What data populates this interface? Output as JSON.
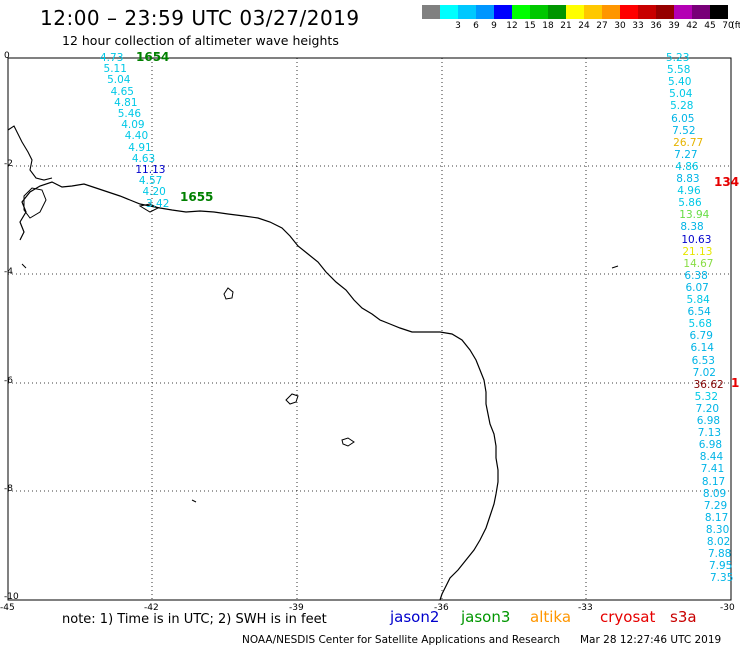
{
  "header": {
    "title": "12:00 – 23:59 UTC 03/27/2019",
    "subtitle": "12 hour collection of altimeter wave heights"
  },
  "legend": {
    "unit_label": "(ft)",
    "bins": [
      {
        "label": "",
        "color": "#808080"
      },
      {
        "label": "3",
        "color": "#00ffff"
      },
      {
        "label": "6",
        "color": "#00c8ff"
      },
      {
        "label": "9",
        "color": "#0096ff"
      },
      {
        "label": "12",
        "color": "#0000ff"
      },
      {
        "label": "15",
        "color": "#00ff00"
      },
      {
        "label": "18",
        "color": "#00c800"
      },
      {
        "label": "21",
        "color": "#009600"
      },
      {
        "label": "24",
        "color": "#ffff00"
      },
      {
        "label": "27",
        "color": "#ffc800"
      },
      {
        "label": "30",
        "color": "#ff9600"
      },
      {
        "label": "33",
        "color": "#ff0000"
      },
      {
        "label": "36",
        "color": "#c80000"
      },
      {
        "label": "39",
        "color": "#960000"
      },
      {
        "label": "42",
        "color": "#b400b4"
      },
      {
        "label": "45",
        "color": "#780078"
      },
      {
        "label": "70",
        "color": "#000000"
      }
    ]
  },
  "axes": {
    "x_ticks": [
      "-45",
      "-42",
      "-39",
      "-36",
      "-33",
      "-30"
    ],
    "y_ticks": [
      "0",
      "-2",
      "-4",
      "-6",
      "-8",
      "-10"
    ]
  },
  "tracks": {
    "west": {
      "start_time": "1654",
      "end_time": "1655",
      "values": [
        {
          "v": "4.73",
          "c": "#00c8e6"
        },
        {
          "v": "5.11",
          "c": "#00c8e6"
        },
        {
          "v": "5.04",
          "c": "#00c8e6"
        },
        {
          "v": "4.65",
          "c": "#00c8e6"
        },
        {
          "v": "4.81",
          "c": "#00c8e6"
        },
        {
          "v": "5.46",
          "c": "#00c8e6"
        },
        {
          "v": "4.09",
          "c": "#00c8e6"
        },
        {
          "v": "4.40",
          "c": "#00c8e6"
        },
        {
          "v": "4.91",
          "c": "#00c8e6"
        },
        {
          "v": "4.63",
          "c": "#00c8e6"
        },
        {
          "v": "11.13",
          "c": "#0000cc"
        },
        {
          "v": "4.57",
          "c": "#00c8e6"
        },
        {
          "v": "4.20",
          "c": "#00c8e6"
        },
        {
          "v": "3.42",
          "c": "#00c8e6"
        }
      ]
    },
    "east": {
      "values": [
        {
          "v": "5.23",
          "c": "#00c8e6"
        },
        {
          "v": "5.58",
          "c": "#00c8e6"
        },
        {
          "v": "5.40",
          "c": "#00c8e6"
        },
        {
          "v": "5.04",
          "c": "#00c8e6"
        },
        {
          "v": "5.28",
          "c": "#00c8e6"
        },
        {
          "v": "6.05",
          "c": "#00b4e6"
        },
        {
          "v": "7.52",
          "c": "#00b4e6"
        },
        {
          "v": "26.77",
          "c": "#e6b400"
        },
        {
          "v": "7.27",
          "c": "#00b4e6"
        },
        {
          "v": "4.86",
          "c": "#00c8e6"
        },
        {
          "v": "8.83",
          "c": "#00b4e6"
        },
        {
          "v": "4.96",
          "c": "#00c8e6"
        },
        {
          "v": "5.86",
          "c": "#00c8e6"
        },
        {
          "v": "13.94",
          "c": "#66dd44"
        },
        {
          "v": "8.38",
          "c": "#00b4e6"
        },
        {
          "v": "10.63",
          "c": "#0000cc"
        },
        {
          "v": "21.13",
          "c": "#e6e600"
        },
        {
          "v": "14.67",
          "c": "#88dd44"
        },
        {
          "v": "6.38",
          "c": "#00b4e6"
        },
        {
          "v": "6.07",
          "c": "#00b4e6"
        },
        {
          "v": "5.84",
          "c": "#00c8e6"
        },
        {
          "v": "6.54",
          "c": "#00b4e6"
        },
        {
          "v": "5.68",
          "c": "#00c8e6"
        },
        {
          "v": "6.79",
          "c": "#00b4e6"
        },
        {
          "v": "6.14",
          "c": "#00b4e6"
        },
        {
          "v": "6.53",
          "c": "#00b4e6"
        },
        {
          "v": "7.02",
          "c": "#00b4e6"
        },
        {
          "v": "36.62",
          "c": "#800000"
        },
        {
          "v": "5.32",
          "c": "#00c8e6"
        },
        {
          "v": "7.20",
          "c": "#00b4e6"
        },
        {
          "v": "6.98",
          "c": "#00b4e6"
        },
        {
          "v": "7.13",
          "c": "#00b4e6"
        },
        {
          "v": "6.98",
          "c": "#00b4e6"
        },
        {
          "v": "8.44",
          "c": "#00b4e6"
        },
        {
          "v": "7.41",
          "c": "#00b4e6"
        },
        {
          "v": "8.17",
          "c": "#00b4e6"
        },
        {
          "v": "8.09",
          "c": "#00b4e6"
        },
        {
          "v": "7.29",
          "c": "#00b4e6"
        },
        {
          "v": "8.17",
          "c": "#00b4e6"
        },
        {
          "v": "8.30",
          "c": "#00b4e6"
        },
        {
          "v": "8.02",
          "c": "#00b4e6"
        },
        {
          "v": "7.88",
          "c": "#00b4e6"
        },
        {
          "v": "7.95",
          "c": "#00b4e6"
        },
        {
          "v": "7.35",
          "c": "#00b4e6"
        }
      ],
      "time_label_1": "134",
      "time_label_2": "1"
    }
  },
  "footer": {
    "note": "note: 1) Time is in UTC; 2) SWH is in feet",
    "satellites": [
      {
        "name": "jason2",
        "color": "#0000cc"
      },
      {
        "name": "jason3",
        "color": "#009600"
      },
      {
        "name": "altika",
        "color": "#ff9600"
      },
      {
        "name": "cryosat",
        "color": "#e60000"
      },
      {
        "name": "s3a",
        "color": "#c80000"
      }
    ],
    "credit": "NOAA/NESDIS Center for Satellite Applications and Research",
    "timestamp": "Mar 28 12:27:46 UTC 2019"
  }
}
